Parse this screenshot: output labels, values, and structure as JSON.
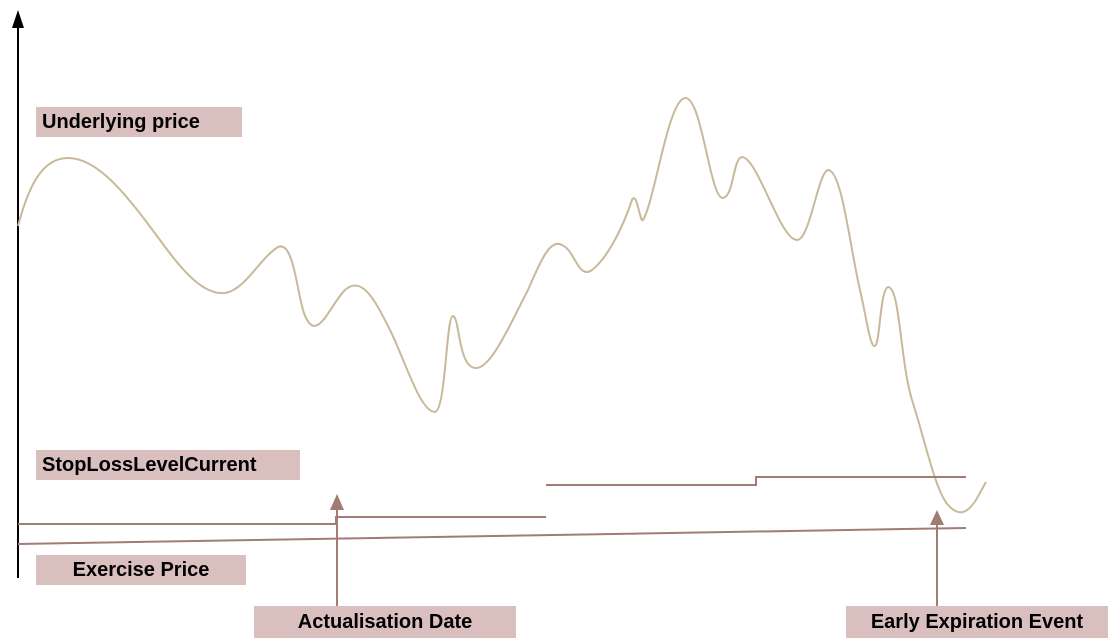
{
  "labels": {
    "underlying_price": "Underlying price",
    "stop_loss_level_current": "StopLossLevelCurrent",
    "exercise_price": "Exercise Price",
    "actualisation_date": "Actualisation Date",
    "early_expiration_event": "Early Expiration Event"
  },
  "colors": {
    "price_curve": "#c8b99a",
    "level_lines": "#a07c75",
    "label_background": "#d9bfbd",
    "axis": "#000000"
  }
}
